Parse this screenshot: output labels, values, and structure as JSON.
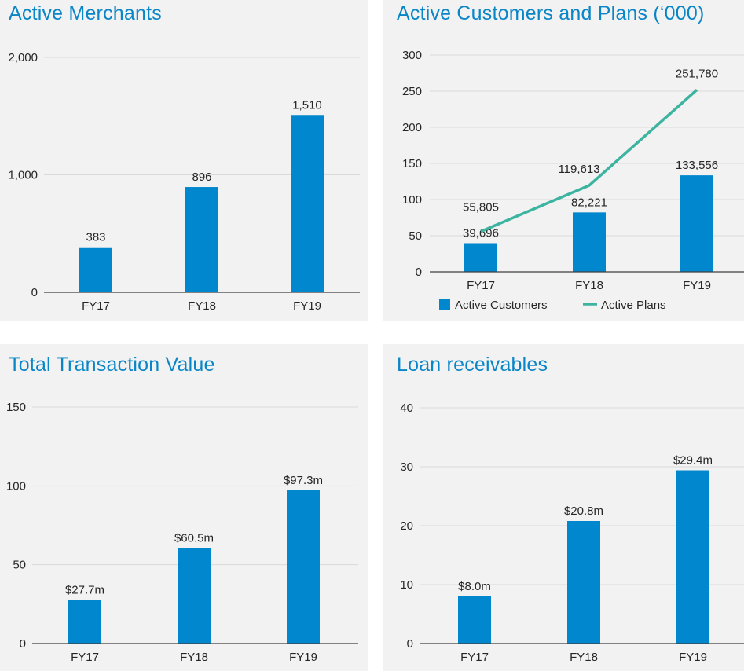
{
  "colors": {
    "bar": "#0087cd",
    "line": "#3cb4a0",
    "title": "#0a86c7",
    "grid": "#d9d9d9",
    "axis": "#404040",
    "panel_bg": "#f2f2f2",
    "text": "#262626"
  },
  "panels": [
    {
      "title": "Active Merchants"
    },
    {
      "title": "Active Customers and Plans (‘000)"
    },
    {
      "title": "Total Transaction Value"
    },
    {
      "title": "Loan receivables"
    }
  ],
  "chart_data": [
    {
      "type": "bar",
      "title": "Active Merchants",
      "categories": [
        "FY17",
        "FY18",
        "FY19"
      ],
      "values": [
        383,
        896,
        1510
      ],
      "data_labels": [
        "383",
        "896",
        "1,510"
      ],
      "ylim": [
        0,
        2000
      ],
      "yticks": [
        0,
        1000,
        2000
      ],
      "ytick_labels": [
        "0",
        "1,000",
        "2,000"
      ],
      "grid": true
    },
    {
      "type": "bar",
      "title": "Active Customers and Plans (‘000)",
      "categories": [
        "FY17",
        "FY18",
        "FY19"
      ],
      "series": [
        {
          "name": "Active Customers",
          "kind": "bar",
          "values": [
            39.696,
            82.221,
            133.556
          ],
          "data_labels": [
            "39,696",
            "82,221",
            "133,556"
          ]
        },
        {
          "name": "Active Plans",
          "kind": "line",
          "values": [
            55.805,
            119.613,
            251.78
          ],
          "data_labels": [
            "55,805",
            "119,613",
            "251,780"
          ]
        }
      ],
      "ylim": [
        0,
        300
      ],
      "yticks": [
        0,
        50,
        100,
        150,
        200,
        250,
        300
      ],
      "ytick_labels": [
        "0",
        "50",
        "100",
        "150",
        "200",
        "250",
        "300"
      ],
      "legend": "bottom",
      "grid": true
    },
    {
      "type": "bar",
      "title": "Total Transaction Value",
      "categories": [
        "FY17",
        "FY18",
        "FY19"
      ],
      "values": [
        27.7,
        60.5,
        97.3
      ],
      "data_labels": [
        "$27.7m",
        "$60.5m",
        "$97.3m"
      ],
      "ylim": [
        0,
        150
      ],
      "yticks": [
        0,
        50,
        100,
        150
      ],
      "ytick_labels": [
        "0",
        "50",
        "100",
        "150"
      ],
      "grid": true
    },
    {
      "type": "bar",
      "title": "Loan receivables",
      "categories": [
        "FY17",
        "FY18",
        "FY19"
      ],
      "values": [
        8.0,
        20.8,
        29.4
      ],
      "data_labels": [
        "$8.0m",
        "$20.8m",
        "$29.4m"
      ],
      "ylim": [
        0,
        40
      ],
      "yticks": [
        0,
        10,
        20,
        30,
        40
      ],
      "ytick_labels": [
        "0",
        "10",
        "20",
        "30",
        "40"
      ],
      "grid": true
    }
  ]
}
